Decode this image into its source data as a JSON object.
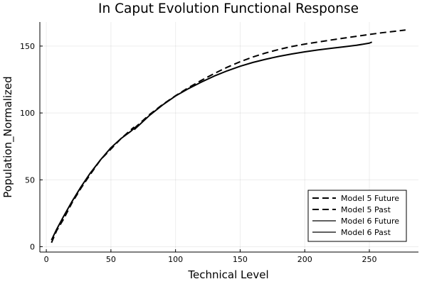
{
  "chart_data": {
    "type": "line",
    "title": "In Caput Evolution Functional Response",
    "xlabel": "Technical Level",
    "ylabel": "Population_Normalized",
    "xlim": [
      -5,
      288
    ],
    "ylim": [
      -4,
      168
    ],
    "xticks": [
      0,
      50,
      100,
      150,
      200,
      250
    ],
    "yticks": [
      0,
      50,
      100,
      150
    ],
    "x_tick_labels": [
      "0",
      "50",
      "100",
      "150",
      "200",
      "250"
    ],
    "y_tick_labels": [
      "0",
      "50",
      "100",
      "150"
    ],
    "grid": true,
    "legend_position": "bottom-right",
    "series": [
      {
        "name": "Model 5 Future",
        "style": "dashed",
        "color": "#000000",
        "x": [
          68,
          80,
          90,
          100,
          110,
          120,
          130,
          140,
          150,
          160,
          170,
          180,
          190,
          200,
          210,
          220,
          230,
          240,
          250,
          260,
          270,
          278
        ],
        "y": [
          88.5,
          98.9,
          106.3,
          112.9,
          118.9,
          124.4,
          129.5,
          134.2,
          138.3,
          141.9,
          144.9,
          147.5,
          149.7,
          151.5,
          153.0,
          154.5,
          155.9,
          157.3,
          158.7,
          160.0,
          161.1,
          162.0
        ]
      },
      {
        "name": "Model 5 Past",
        "style": "dashed",
        "color": "#000000",
        "x": [
          4,
          8,
          13,
          20,
          27,
          34,
          42,
          50,
          58,
          65,
          68
        ],
        "y": [
          3,
          12,
          20,
          33,
          44,
          54,
          65,
          73,
          81,
          87,
          89.5
        ]
      },
      {
        "name": "Model 6 Future",
        "style": "solid",
        "color": "#000000",
        "x": [
          68,
          80,
          90,
          100,
          110,
          120,
          130,
          140,
          150,
          160,
          170,
          180,
          190,
          200,
          210,
          220,
          230,
          240,
          250,
          252
        ],
        "y": [
          87.5,
          98.3,
          106,
          112.7,
          118.2,
          123.1,
          127.6,
          131.5,
          134.9,
          137.8,
          140.2,
          142.3,
          144.1,
          145.7,
          147.1,
          148.3,
          149.4,
          150.6,
          152.2,
          153
        ]
      },
      {
        "name": "Model 6 Past",
        "style": "solid",
        "color": "#000000",
        "x": [
          4,
          8,
          13,
          20,
          27,
          34,
          42,
          50,
          58,
          65,
          68
        ],
        "y": [
          5,
          13,
          22,
          34,
          45,
          55,
          65,
          74,
          81,
          86,
          88.5
        ]
      }
    ]
  }
}
